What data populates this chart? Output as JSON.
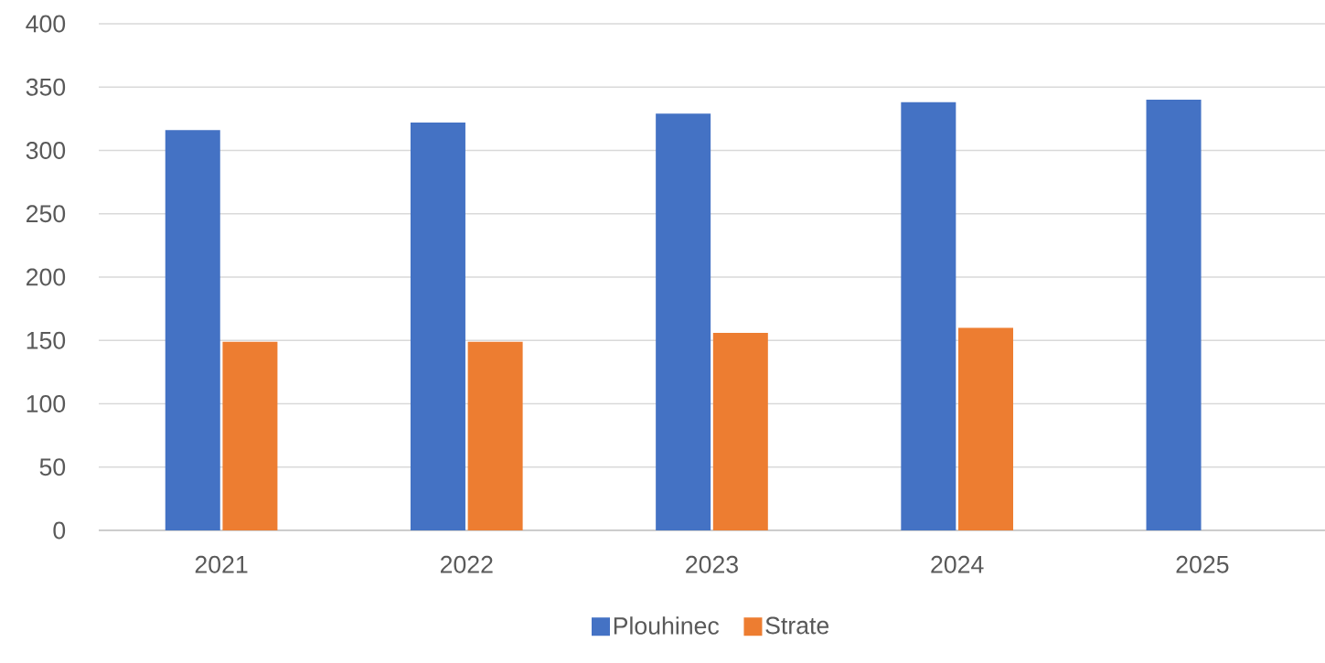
{
  "chart_data": {
    "type": "bar",
    "categories": [
      "2021",
      "2022",
      "2023",
      "2024",
      "2025"
    ],
    "series": [
      {
        "name": "Plouhinec",
        "color": "#4472c4",
        "values": [
          316,
          322,
          329,
          338,
          340
        ]
      },
      {
        "name": "Strate",
        "color": "#ed7d31",
        "values": [
          149,
          149,
          156,
          160,
          null
        ]
      }
    ],
    "ylim": [
      0,
      400
    ],
    "yticks": [
      0,
      50,
      100,
      150,
      200,
      250,
      300,
      350,
      400
    ],
    "grid": "y",
    "legend": "bottom"
  }
}
